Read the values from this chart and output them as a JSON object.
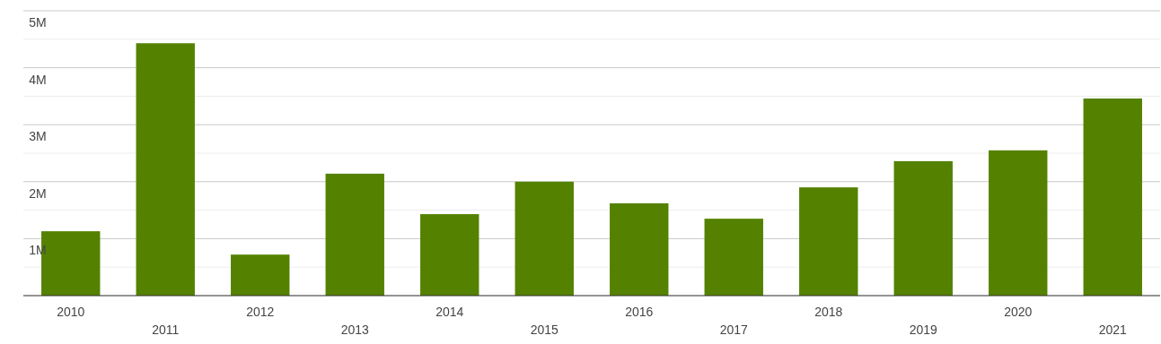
{
  "chart_data": {
    "type": "bar",
    "categories": [
      "2010",
      "2011",
      "2012",
      "2013",
      "2014",
      "2015",
      "2016",
      "2017",
      "2018",
      "2019",
      "2020",
      "2021"
    ],
    "values": [
      1130000,
      4430000,
      720000,
      2140000,
      1430000,
      2000000,
      1620000,
      1350000,
      1900000,
      2360000,
      2550000,
      3460000
    ],
    "color": "#548200",
    "ylim": [
      0,
      5000000
    ],
    "yticks": [
      {
        "value": 0,
        "label": null
      },
      {
        "value": 500000,
        "label": null
      },
      {
        "value": 1000000,
        "label": "1M"
      },
      {
        "value": 1500000,
        "label": null
      },
      {
        "value": 2000000,
        "label": "2M"
      },
      {
        "value": 2500000,
        "label": null
      },
      {
        "value": 3000000,
        "label": "3M"
      },
      {
        "value": 3500000,
        "label": null
      },
      {
        "value": 4000000,
        "label": "4M"
      },
      {
        "value": 4500000,
        "label": null
      },
      {
        "value": 5000000,
        "label": "5M"
      }
    ],
    "grid": "y"
  }
}
